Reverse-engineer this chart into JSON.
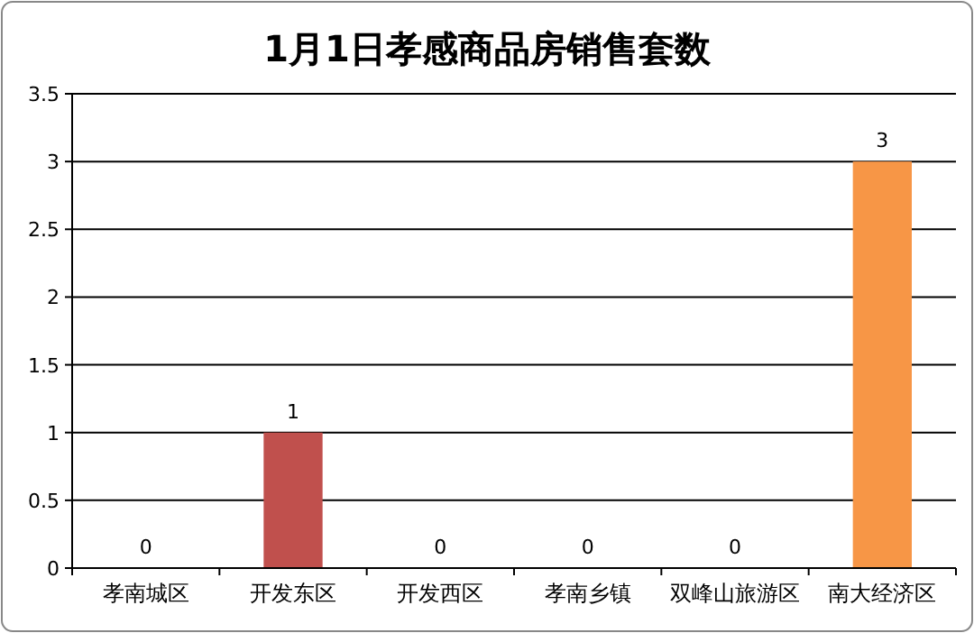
{
  "chart_data": {
    "type": "bar",
    "title": "1月1日孝感商品房销售套数",
    "categories": [
      "孝南城区",
      "开发东区",
      "开发西区",
      "孝南乡镇",
      "双峰山旅游区",
      "南大经济区"
    ],
    "values": [
      0,
      1,
      0,
      0,
      0,
      3
    ],
    "colors": [
      "#4f81bd",
      "#c0504d",
      "#9bbb59",
      "#8064a2",
      "#4bacc6",
      "#f79646"
    ],
    "ylim": [
      0,
      3.5
    ],
    "yticks": [
      0,
      0.5,
      1,
      1.5,
      2,
      2.5,
      3,
      3.5
    ],
    "grid": "y",
    "data_labels": true
  }
}
